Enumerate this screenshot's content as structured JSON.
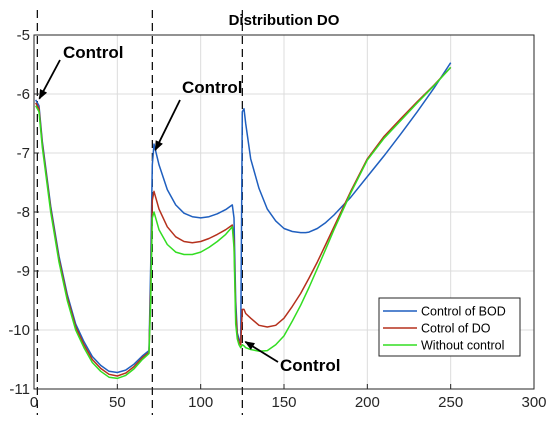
{
  "chart_data": {
    "type": "line",
    "title": "Distribution DO",
    "xlabel": "",
    "ylabel": "",
    "xlim": [
      0,
      300
    ],
    "ylim": [
      -11,
      -5
    ],
    "xticks": [
      0,
      50,
      100,
      150,
      200,
      250,
      300
    ],
    "yticks": [
      -5,
      -6,
      -7,
      -8,
      -9,
      -10,
      -11
    ],
    "grid": true,
    "legend_position": "bottom-right",
    "control_lines_x": [
      2,
      71,
      125
    ],
    "annotations": [
      {
        "text": "Control",
        "x": 2,
        "y": -6.0
      },
      {
        "text": "Control",
        "x": 71,
        "y": -7.0
      },
      {
        "text": "Control",
        "x": 125,
        "y": -10.2
      }
    ],
    "colors": {
      "Control of BOD": "#1f5fbf",
      "Cotrol of DO": "#b5311d",
      "Without control": "#33dd22"
    },
    "series": [
      {
        "name": "Control of BOD",
        "x": [
          1,
          3,
          5,
          10,
          15,
          20,
          25,
          30,
          35,
          40,
          45,
          50,
          55,
          60,
          65,
          69,
          70,
          71,
          72,
          75,
          80,
          85,
          90,
          95,
          100,
          105,
          110,
          115,
          119,
          120,
          121,
          122,
          123,
          124,
          125,
          126,
          127,
          130,
          135,
          140,
          145,
          150,
          155,
          160,
          163,
          165,
          170,
          175,
          180,
          190,
          200,
          210,
          220,
          230,
          240,
          250
        ],
        "y": [
          -6.1,
          -6.2,
          -6.8,
          -7.9,
          -8.75,
          -9.4,
          -9.9,
          -10.2,
          -10.45,
          -10.6,
          -10.7,
          -10.72,
          -10.68,
          -10.58,
          -10.44,
          -10.35,
          -8.9,
          -7.2,
          -6.85,
          -7.2,
          -7.62,
          -7.88,
          -8.02,
          -8.08,
          -8.1,
          -8.08,
          -8.03,
          -7.96,
          -7.88,
          -8.1,
          -9.5,
          -10.05,
          -10.15,
          -10.2,
          -6.3,
          -6.25,
          -6.5,
          -7.1,
          -7.6,
          -7.95,
          -8.15,
          -8.28,
          -8.33,
          -8.35,
          -8.35,
          -8.34,
          -8.28,
          -8.18,
          -8.05,
          -7.75,
          -7.4,
          -7.05,
          -6.68,
          -6.3,
          -5.9,
          -5.47
        ]
      },
      {
        "name": "Cotrol of DO",
        "x": [
          1,
          3,
          5,
          10,
          15,
          20,
          25,
          30,
          35,
          40,
          45,
          50,
          55,
          60,
          65,
          69,
          70,
          71,
          72,
          75,
          80,
          85,
          90,
          95,
          100,
          105,
          110,
          115,
          119,
          120,
          121,
          122,
          123,
          124,
          125,
          126,
          127,
          130,
          135,
          140,
          145,
          150,
          155,
          160,
          165,
          170,
          175,
          180,
          190,
          200,
          210,
          220,
          230,
          240,
          250
        ],
        "y": [
          -6.15,
          -6.25,
          -6.85,
          -7.95,
          -8.8,
          -9.45,
          -9.95,
          -10.25,
          -10.5,
          -10.65,
          -10.75,
          -10.78,
          -10.73,
          -10.62,
          -10.47,
          -10.38,
          -9.3,
          -7.8,
          -7.65,
          -7.95,
          -8.25,
          -8.42,
          -8.5,
          -8.52,
          -8.5,
          -8.45,
          -8.38,
          -8.3,
          -8.22,
          -8.5,
          -9.7,
          -10.1,
          -10.2,
          -10.25,
          -9.65,
          -9.65,
          -9.72,
          -9.8,
          -9.92,
          -9.95,
          -9.92,
          -9.8,
          -9.6,
          -9.38,
          -9.12,
          -8.85,
          -8.55,
          -8.25,
          -7.65,
          -7.1,
          -6.72,
          -6.42,
          -6.13,
          -5.85,
          -5.55
        ]
      },
      {
        "name": "Without control",
        "x": [
          1,
          3,
          5,
          10,
          15,
          20,
          25,
          30,
          35,
          40,
          45,
          50,
          55,
          60,
          65,
          69,
          70,
          71,
          72,
          75,
          80,
          85,
          90,
          95,
          100,
          105,
          110,
          115,
          119,
          120,
          121,
          122,
          123,
          124,
          125,
          126,
          127,
          130,
          135,
          140,
          145,
          150,
          155,
          160,
          165,
          170,
          175,
          180,
          190,
          200,
          210,
          220,
          230,
          240,
          250
        ],
        "y": [
          -6.2,
          -6.3,
          -6.9,
          -8.0,
          -8.85,
          -9.5,
          -10.0,
          -10.3,
          -10.55,
          -10.7,
          -10.8,
          -10.82,
          -10.77,
          -10.66,
          -10.5,
          -10.4,
          -9.5,
          -8.1,
          -8.0,
          -8.3,
          -8.55,
          -8.68,
          -8.72,
          -8.72,
          -8.68,
          -8.6,
          -8.5,
          -8.38,
          -8.25,
          -8.6,
          -9.9,
          -10.15,
          -10.25,
          -10.3,
          -10.25,
          -10.27,
          -10.3,
          -10.33,
          -10.36,
          -10.35,
          -10.25,
          -10.1,
          -9.85,
          -9.58,
          -9.28,
          -8.96,
          -8.63,
          -8.3,
          -7.68,
          -7.12,
          -6.75,
          -6.45,
          -6.15,
          -5.86,
          -5.55
        ]
      }
    ]
  }
}
